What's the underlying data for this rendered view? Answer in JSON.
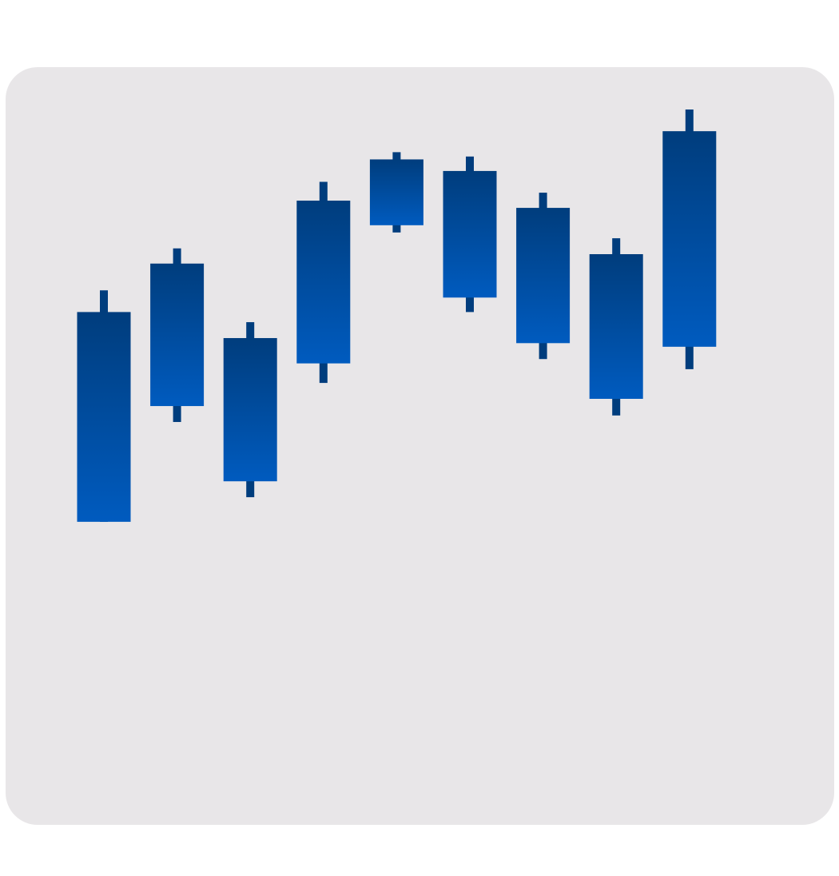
{
  "colors": {
    "background": "#ffffff",
    "card": "#e8e6e8",
    "candle_top": "#003d7d",
    "candle_bottom": "#005bbf",
    "wick": "#003d7d"
  },
  "chart_data": {
    "type": "candlestick",
    "title": "",
    "xlabel": "",
    "ylabel": "",
    "axes_visible": false,
    "grid": false,
    "legend": "none",
    "ylim": [
      0,
      1000
    ],
    "candles": [
      {
        "open": 430,
        "close": 720,
        "high": 750,
        "low": 430
      },
      {
        "open": 590,
        "close": 787,
        "high": 808,
        "low": 568
      },
      {
        "open": 486,
        "close": 684,
        "high": 706,
        "low": 464
      },
      {
        "open": 649,
        "close": 874,
        "high": 900,
        "low": 622
      },
      {
        "open": 840,
        "close": 931,
        "high": 941,
        "low": 830
      },
      {
        "open": 740,
        "close": 915,
        "high": 935,
        "low": 720
      },
      {
        "open": 677,
        "close": 864,
        "high": 885,
        "low": 655
      },
      {
        "open": 600,
        "close": 800,
        "high": 822,
        "low": 577
      },
      {
        "open": 672,
        "close": 970,
        "high": 1000,
        "low": 641
      }
    ]
  }
}
